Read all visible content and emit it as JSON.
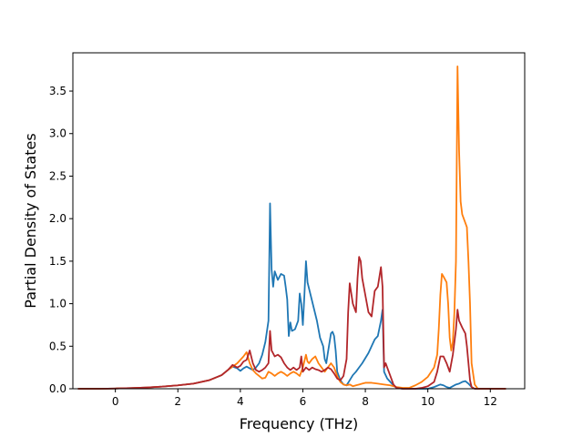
{
  "chart_data": {
    "type": "line",
    "title": "",
    "xlabel": "Frequency (THz)",
    "ylabel": "Partial Density of States",
    "xlim": [
      -1.36,
      13.1
    ],
    "ylim": [
      0,
      3.95
    ],
    "grid": false,
    "x_ticks": [
      0,
      2,
      4,
      6,
      8,
      10,
      12
    ],
    "x_tick_labels": [
      "0",
      "2",
      "4",
      "6",
      "8",
      "10",
      "12"
    ],
    "y_ticks": [
      0.0,
      0.5,
      1.0,
      1.5,
      2.0,
      2.5,
      3.0,
      3.5
    ],
    "y_tick_labels": [
      "0.0",
      "0.5",
      "1.0",
      "1.5",
      "2.0",
      "2.5",
      "3.0",
      "3.5"
    ],
    "series": [
      {
        "color": "#1f77b4",
        "points": [
          [
            -1.2,
            0
          ],
          [
            -0.5,
            0
          ],
          [
            0,
            0.003
          ],
          [
            0.5,
            0.008
          ],
          [
            1,
            0.015
          ],
          [
            1.5,
            0.025
          ],
          [
            2,
            0.04
          ],
          [
            2.5,
            0.06
          ],
          [
            3,
            0.1
          ],
          [
            3.4,
            0.16
          ],
          [
            3.6,
            0.22
          ],
          [
            3.75,
            0.26
          ],
          [
            3.9,
            0.24
          ],
          [
            4.0,
            0.21
          ],
          [
            4.1,
            0.24
          ],
          [
            4.2,
            0.26
          ],
          [
            4.3,
            0.24
          ],
          [
            4.4,
            0.22
          ],
          [
            4.5,
            0.25
          ],
          [
            4.6,
            0.3
          ],
          [
            4.7,
            0.4
          ],
          [
            4.8,
            0.55
          ],
          [
            4.9,
            0.8
          ],
          [
            4.95,
            2.18
          ],
          [
            5.0,
            1.4
          ],
          [
            5.05,
            1.2
          ],
          [
            5.1,
            1.38
          ],
          [
            5.2,
            1.28
          ],
          [
            5.3,
            1.35
          ],
          [
            5.4,
            1.33
          ],
          [
            5.45,
            1.2
          ],
          [
            5.5,
            1.05
          ],
          [
            5.55,
            0.62
          ],
          [
            5.6,
            0.78
          ],
          [
            5.65,
            0.68
          ],
          [
            5.75,
            0.7
          ],
          [
            5.85,
            0.8
          ],
          [
            5.9,
            1.12
          ],
          [
            5.95,
            1.0
          ],
          [
            6.0,
            0.75
          ],
          [
            6.05,
            1.1
          ],
          [
            6.1,
            1.5
          ],
          [
            6.15,
            1.25
          ],
          [
            6.25,
            1.1
          ],
          [
            6.35,
            0.95
          ],
          [
            6.45,
            0.8
          ],
          [
            6.55,
            0.6
          ],
          [
            6.65,
            0.5
          ],
          [
            6.7,
            0.35
          ],
          [
            6.75,
            0.3
          ],
          [
            6.8,
            0.42
          ],
          [
            6.9,
            0.65
          ],
          [
            6.95,
            0.67
          ],
          [
            7.0,
            0.62
          ],
          [
            7.05,
            0.45
          ],
          [
            7.1,
            0.2
          ],
          [
            7.2,
            0.1
          ],
          [
            7.3,
            0.05
          ],
          [
            7.4,
            0.04
          ],
          [
            7.5,
            0.1
          ],
          [
            7.6,
            0.16
          ],
          [
            7.7,
            0.2
          ],
          [
            7.8,
            0.25
          ],
          [
            7.9,
            0.3
          ],
          [
            8.0,
            0.36
          ],
          [
            8.1,
            0.42
          ],
          [
            8.2,
            0.5
          ],
          [
            8.3,
            0.58
          ],
          [
            8.4,
            0.62
          ],
          [
            8.5,
            0.8
          ],
          [
            8.55,
            0.93
          ],
          [
            8.6,
            0.2
          ],
          [
            8.7,
            0.12
          ],
          [
            8.8,
            0.08
          ],
          [
            8.9,
            0.04
          ],
          [
            9.0,
            0.01
          ],
          [
            9.2,
            0
          ],
          [
            10.0,
            0
          ],
          [
            10.2,
            0.02
          ],
          [
            10.4,
            0.05
          ],
          [
            10.5,
            0.04
          ],
          [
            10.6,
            0.02
          ],
          [
            10.7,
            0.01
          ],
          [
            10.8,
            0.03
          ],
          [
            10.9,
            0.05
          ],
          [
            11.0,
            0.06
          ],
          [
            11.1,
            0.08
          ],
          [
            11.2,
            0.09
          ],
          [
            11.3,
            0.06
          ],
          [
            11.4,
            0.02
          ],
          [
            11.5,
            0
          ],
          [
            12.5,
            0
          ]
        ]
      },
      {
        "color": "#ff7f0e",
        "points": [
          [
            -1.2,
            0
          ],
          [
            -0.5,
            0
          ],
          [
            0,
            0.003
          ],
          [
            0.5,
            0.008
          ],
          [
            1,
            0.015
          ],
          [
            1.5,
            0.025
          ],
          [
            2,
            0.04
          ],
          [
            2.5,
            0.06
          ],
          [
            3,
            0.1
          ],
          [
            3.4,
            0.16
          ],
          [
            3.6,
            0.22
          ],
          [
            3.75,
            0.26
          ],
          [
            3.9,
            0.3
          ],
          [
            4.0,
            0.34
          ],
          [
            4.1,
            0.38
          ],
          [
            4.2,
            0.43
          ],
          [
            4.3,
            0.3
          ],
          [
            4.4,
            0.22
          ],
          [
            4.5,
            0.18
          ],
          [
            4.6,
            0.15
          ],
          [
            4.7,
            0.12
          ],
          [
            4.8,
            0.13
          ],
          [
            4.9,
            0.2
          ],
          [
            5.0,
            0.18
          ],
          [
            5.1,
            0.15
          ],
          [
            5.2,
            0.18
          ],
          [
            5.3,
            0.2
          ],
          [
            5.4,
            0.18
          ],
          [
            5.5,
            0.15
          ],
          [
            5.6,
            0.18
          ],
          [
            5.7,
            0.2
          ],
          [
            5.8,
            0.18
          ],
          [
            5.9,
            0.15
          ],
          [
            6.0,
            0.25
          ],
          [
            6.1,
            0.4
          ],
          [
            6.15,
            0.32
          ],
          [
            6.2,
            0.3
          ],
          [
            6.3,
            0.35
          ],
          [
            6.4,
            0.38
          ],
          [
            6.5,
            0.3
          ],
          [
            6.6,
            0.25
          ],
          [
            6.7,
            0.2
          ],
          [
            6.8,
            0.25
          ],
          [
            6.9,
            0.3
          ],
          [
            7.0,
            0.25
          ],
          [
            7.1,
            0.15
          ],
          [
            7.2,
            0.08
          ],
          [
            7.3,
            0.05
          ],
          [
            7.4,
            0.04
          ],
          [
            7.5,
            0.05
          ],
          [
            7.6,
            0.03
          ],
          [
            7.7,
            0.04
          ],
          [
            7.8,
            0.05
          ],
          [
            7.9,
            0.06
          ],
          [
            8.0,
            0.07
          ],
          [
            8.2,
            0.07
          ],
          [
            8.4,
            0.06
          ],
          [
            8.6,
            0.05
          ],
          [
            8.8,
            0.04
          ],
          [
            9.0,
            0.02
          ],
          [
            9.2,
            0.01
          ],
          [
            9.4,
            0.01
          ],
          [
            9.6,
            0.04
          ],
          [
            9.8,
            0.08
          ],
          [
            10.0,
            0.14
          ],
          [
            10.2,
            0.25
          ],
          [
            10.3,
            0.4
          ],
          [
            10.35,
            0.7
          ],
          [
            10.4,
            1.1
          ],
          [
            10.45,
            1.35
          ],
          [
            10.5,
            1.32
          ],
          [
            10.6,
            1.25
          ],
          [
            10.65,
            1.0
          ],
          [
            10.7,
            0.6
          ],
          [
            10.75,
            0.45
          ],
          [
            10.8,
            0.55
          ],
          [
            10.85,
            0.9
          ],
          [
            10.9,
            1.5
          ],
          [
            10.95,
            3.79
          ],
          [
            11.0,
            2.8
          ],
          [
            11.05,
            2.2
          ],
          [
            11.1,
            2.05
          ],
          [
            11.2,
            1.95
          ],
          [
            11.25,
            1.9
          ],
          [
            11.3,
            1.5
          ],
          [
            11.35,
            1.0
          ],
          [
            11.4,
            0.3
          ],
          [
            11.5,
            0.05
          ],
          [
            11.6,
            0
          ],
          [
            12.5,
            0
          ]
        ]
      },
      {
        "color": "#b2262a",
        "points": [
          [
            -1.2,
            0
          ],
          [
            -0.5,
            0
          ],
          [
            0,
            0.003
          ],
          [
            0.5,
            0.008
          ],
          [
            1,
            0.015
          ],
          [
            1.5,
            0.025
          ],
          [
            2,
            0.04
          ],
          [
            2.5,
            0.06
          ],
          [
            3,
            0.1
          ],
          [
            3.4,
            0.16
          ],
          [
            3.6,
            0.22
          ],
          [
            3.75,
            0.28
          ],
          [
            3.9,
            0.25
          ],
          [
            4.0,
            0.27
          ],
          [
            4.1,
            0.32
          ],
          [
            4.2,
            0.34
          ],
          [
            4.3,
            0.45
          ],
          [
            4.4,
            0.3
          ],
          [
            4.5,
            0.22
          ],
          [
            4.6,
            0.2
          ],
          [
            4.7,
            0.22
          ],
          [
            4.8,
            0.25
          ],
          [
            4.9,
            0.3
          ],
          [
            4.95,
            0.68
          ],
          [
            5.0,
            0.45
          ],
          [
            5.1,
            0.38
          ],
          [
            5.2,
            0.4
          ],
          [
            5.3,
            0.37
          ],
          [
            5.4,
            0.3
          ],
          [
            5.5,
            0.25
          ],
          [
            5.6,
            0.22
          ],
          [
            5.7,
            0.25
          ],
          [
            5.8,
            0.22
          ],
          [
            5.9,
            0.25
          ],
          [
            5.95,
            0.38
          ],
          [
            6.0,
            0.2
          ],
          [
            6.1,
            0.25
          ],
          [
            6.2,
            0.22
          ],
          [
            6.3,
            0.25
          ],
          [
            6.4,
            0.23
          ],
          [
            6.5,
            0.22
          ],
          [
            6.6,
            0.2
          ],
          [
            6.7,
            0.22
          ],
          [
            6.8,
            0.25
          ],
          [
            6.9,
            0.23
          ],
          [
            7.0,
            0.18
          ],
          [
            7.1,
            0.12
          ],
          [
            7.2,
            0.1
          ],
          [
            7.3,
            0.15
          ],
          [
            7.4,
            0.35
          ],
          [
            7.45,
            0.9
          ],
          [
            7.5,
            1.24
          ],
          [
            7.6,
            1.0
          ],
          [
            7.7,
            0.9
          ],
          [
            7.75,
            1.3
          ],
          [
            7.8,
            1.55
          ],
          [
            7.85,
            1.5
          ],
          [
            7.9,
            1.3
          ],
          [
            8.0,
            1.1
          ],
          [
            8.1,
            0.9
          ],
          [
            8.2,
            0.85
          ],
          [
            8.3,
            1.15
          ],
          [
            8.4,
            1.2
          ],
          [
            8.5,
            1.43
          ],
          [
            8.55,
            1.2
          ],
          [
            8.6,
            0.25
          ],
          [
            8.65,
            0.3
          ],
          [
            8.7,
            0.25
          ],
          [
            8.8,
            0.15
          ],
          [
            8.9,
            0.05
          ],
          [
            9.0,
            0.01
          ],
          [
            9.2,
            0
          ],
          [
            9.6,
            0
          ],
          [
            9.8,
            0.01
          ],
          [
            10.0,
            0.03
          ],
          [
            10.2,
            0.08
          ],
          [
            10.3,
            0.2
          ],
          [
            10.4,
            0.38
          ],
          [
            10.5,
            0.38
          ],
          [
            10.6,
            0.3
          ],
          [
            10.7,
            0.2
          ],
          [
            10.8,
            0.4
          ],
          [
            10.9,
            0.7
          ],
          [
            10.95,
            0.93
          ],
          [
            11.0,
            0.8
          ],
          [
            11.1,
            0.72
          ],
          [
            11.2,
            0.65
          ],
          [
            11.25,
            0.5
          ],
          [
            11.3,
            0.3
          ],
          [
            11.35,
            0.1
          ],
          [
            11.4,
            0.02
          ],
          [
            11.5,
            0
          ],
          [
            12.5,
            0
          ]
        ]
      }
    ]
  }
}
